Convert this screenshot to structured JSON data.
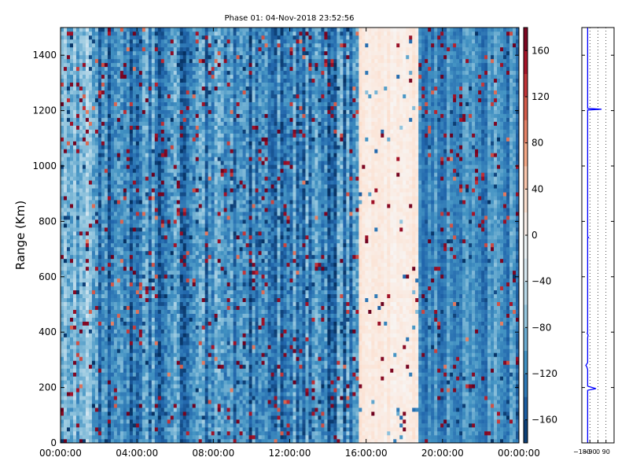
{
  "chart_data": [
    {
      "type": "heatmap",
      "title": "Phase 01: 04-Nov-2018 23:52:56",
      "xlabel": "",
      "ylabel": "Range (Km)",
      "ylim": [
        0,
        1500
      ],
      "x_ticks": [
        "00:00:00",
        "04:00:00",
        "08:00:00",
        "12:00:00",
        "16:00:00",
        "20:00:00",
        "00:00:00"
      ],
      "x_tick_hours": [
        0,
        4,
        8,
        12,
        16,
        20,
        24
      ],
      "y_ticks": [
        0,
        200,
        400,
        600,
        800,
        1000,
        1200,
        1400
      ],
      "colorbar": {
        "colormap": "RdBu_r",
        "vmin": -180,
        "vmax": 180,
        "ticks": [
          "160",
          "120",
          "80",
          "40",
          "0",
          "−40",
          "−80",
          "−120",
          "−160"
        ],
        "tick_values": [
          160,
          120,
          80,
          40,
          0,
          -40,
          -80,
          -120,
          -160
        ]
      },
      "grid": false,
      "segments": [
        {
          "start_hour": 0,
          "end_hour": 1.6,
          "mean_phase": -85,
          "spread": 45
        },
        {
          "start_hour": 1.6,
          "end_hour": 15.6,
          "mean_phase": -120,
          "spread": 55
        },
        {
          "start_hour": 15.6,
          "end_hour": 18.8,
          "mean_phase": 20,
          "spread": 15
        },
        {
          "start_hour": 18.8,
          "end_hour": 24,
          "mean_phase": -115,
          "spread": 35
        }
      ]
    },
    {
      "type": "line",
      "title": "",
      "xlabel": "",
      "ylabel": "",
      "xlim": [
        -180,
        180
      ],
      "ylim": [
        0,
        1500
      ],
      "x_ticks": [
        "−180",
        "−90",
        "0",
        "90"
      ],
      "x_tick_values": [
        -180,
        -90,
        0,
        90
      ],
      "grid": true,
      "series": [
        {
          "color": "#0000ff",
          "baseline_phase": -115,
          "range_km": [
            0,
            180,
            190,
            196,
            205,
            215,
            265,
            275,
            280,
            285,
            290,
            380,
            390,
            395,
            400,
            530,
            700,
            740,
            742,
            744,
            780,
            1000,
            1190,
            1202,
            1205,
            1208,
            1220,
            1500
          ],
          "phase": [
            -115,
            -115,
            -115,
            -22,
            -115,
            -115,
            -115,
            -125,
            -135,
            -125,
            -115,
            -115,
            -110,
            -120,
            -115,
            -115,
            -115,
            -115,
            -105,
            -115,
            -115,
            -115,
            -115,
            -115,
            40,
            -115,
            -115,
            -115
          ]
        }
      ]
    }
  ]
}
